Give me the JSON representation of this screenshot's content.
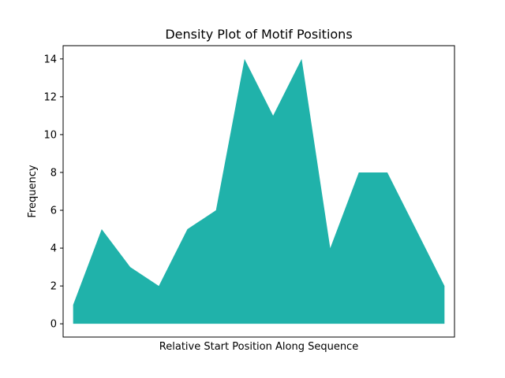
{
  "chart_data": {
    "type": "area",
    "title": "Density Plot of Motif Positions",
    "xlabel": "Relative Start Position Along Sequence",
    "ylabel": "Frequency",
    "xlim": [
      -0.35,
      13.35
    ],
    "ylim": [
      -0.7,
      14.7
    ],
    "yticks": [
      0,
      2,
      4,
      6,
      8,
      10,
      12,
      14
    ],
    "xticks_shown": false,
    "grid": false,
    "legend": "none",
    "series": [
      {
        "x": [
          0,
          1,
          2,
          3,
          4,
          5,
          6,
          7,
          8,
          9,
          10,
          11,
          12,
          13
        ],
        "values": [
          1,
          5,
          3,
          2,
          5,
          6,
          14,
          11,
          14,
          4,
          8,
          8,
          5,
          2
        ],
        "color": "#20b2aa"
      }
    ]
  }
}
